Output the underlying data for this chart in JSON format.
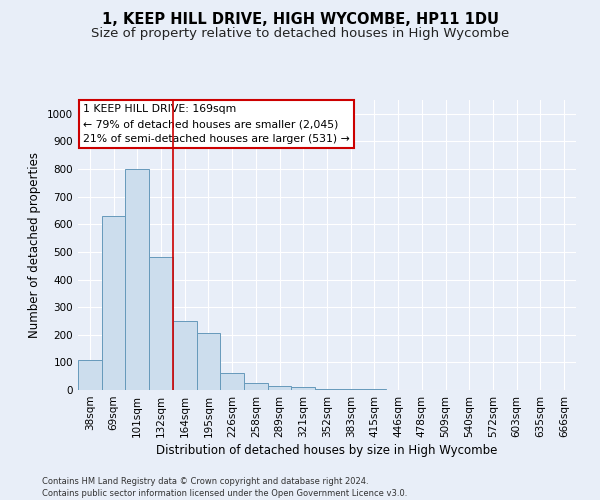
{
  "title_line1": "1, KEEP HILL DRIVE, HIGH WYCOMBE, HP11 1DU",
  "title_line2": "Size of property relative to detached houses in High Wycombe",
  "xlabel": "Distribution of detached houses by size in High Wycombe",
  "ylabel": "Number of detached properties",
  "footnote1": "Contains HM Land Registry data © Crown copyright and database right 2024.",
  "footnote2": "Contains public sector information licensed under the Open Government Licence v3.0.",
  "bar_labels": [
    "38sqm",
    "69sqm",
    "101sqm",
    "132sqm",
    "164sqm",
    "195sqm",
    "226sqm",
    "258sqm",
    "289sqm",
    "321sqm",
    "352sqm",
    "383sqm",
    "415sqm",
    "446sqm",
    "478sqm",
    "509sqm",
    "540sqm",
    "572sqm",
    "603sqm",
    "635sqm",
    "666sqm"
  ],
  "bar_values": [
    110,
    630,
    800,
    480,
    250,
    205,
    60,
    25,
    15,
    10,
    5,
    5,
    5,
    0,
    0,
    0,
    0,
    0,
    0,
    0,
    0
  ],
  "bar_color": "#ccdded",
  "bar_edge_color": "#6699bb",
  "ylim": [
    0,
    1050
  ],
  "yticks": [
    0,
    100,
    200,
    300,
    400,
    500,
    600,
    700,
    800,
    900,
    1000
  ],
  "vline_x": 4.0,
  "vline_color": "#cc0000",
  "annotation_text": "1 KEEP HILL DRIVE: 169sqm\n← 79% of detached houses are smaller (2,045)\n21% of semi-detached houses are larger (531) →",
  "annotation_box_color": "#ffffff",
  "annotation_box_edge": "#cc0000",
  "background_color": "#e8eef8",
  "grid_color": "#ffffff",
  "title_fontsize": 10.5,
  "subtitle_fontsize": 9.5,
  "tick_fontsize": 7.5,
  "label_fontsize": 8.5,
  "annotation_fontsize": 7.8
}
